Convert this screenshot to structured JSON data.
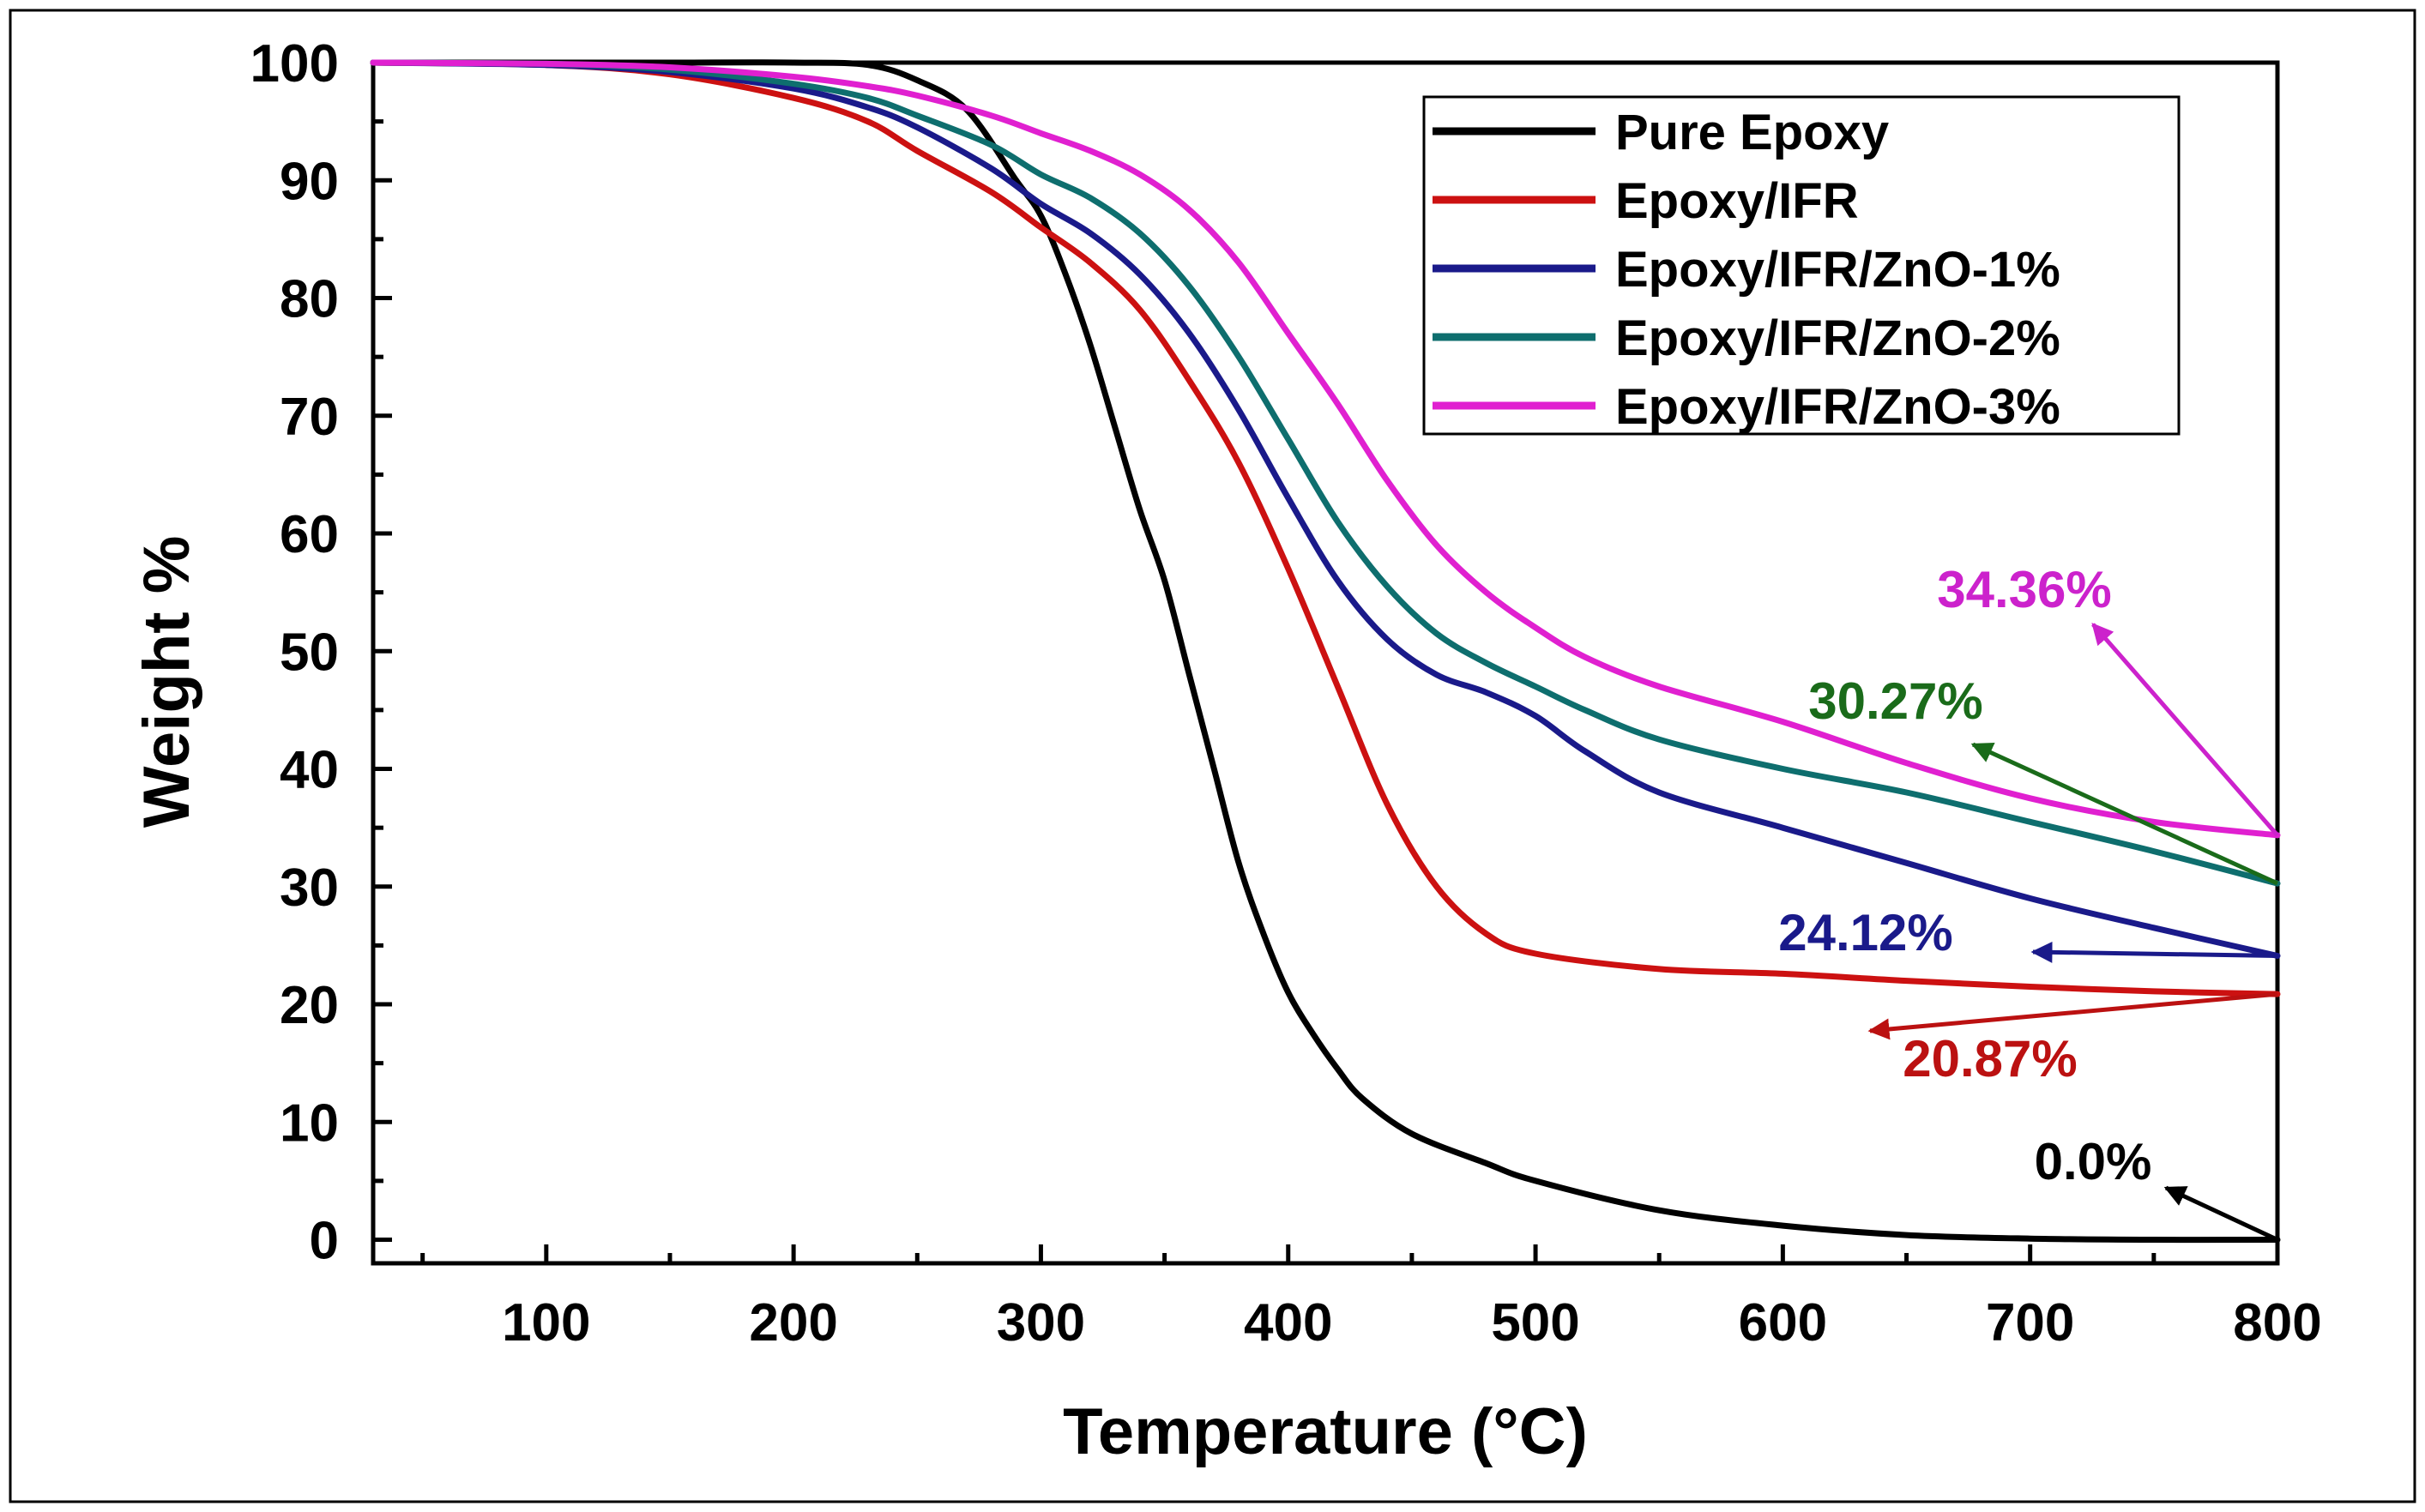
{
  "chart_data": {
    "type": "line",
    "xlabel": "Temperature (°C)",
    "ylabel": "Weight %",
    "xlim": [
      30,
      800
    ],
    "ylim": [
      -2,
      100
    ],
    "x_ticks": [
      100,
      200,
      300,
      400,
      500,
      600,
      700,
      800
    ],
    "y_ticks": [
      0,
      10,
      20,
      30,
      40,
      50,
      60,
      70,
      80,
      90,
      100
    ],
    "x_tick_labels": [
      "100",
      "200",
      "300",
      "400",
      "500",
      "600",
      "700",
      "800"
    ],
    "y_tick_labels": [
      "0",
      "10",
      "20",
      "30",
      "40",
      "50",
      "60",
      "70",
      "80",
      "90",
      "100"
    ],
    "grid": false,
    "legend_position": "top-right",
    "series": [
      {
        "name": "Pure Epoxy",
        "color": "#000000",
        "points": [
          [
            30,
            100
          ],
          [
            100,
            100
          ],
          [
            150,
            100
          ],
          [
            200,
            100
          ],
          [
            230,
            99.8
          ],
          [
            250,
            98.5
          ],
          [
            270,
            96
          ],
          [
            290,
            90
          ],
          [
            300,
            87
          ],
          [
            310,
            82
          ],
          [
            320,
            76
          ],
          [
            330,
            69
          ],
          [
            340,
            62
          ],
          [
            350,
            56
          ],
          [
            360,
            48
          ],
          [
            370,
            40
          ],
          [
            380,
            32
          ],
          [
            390,
            26
          ],
          [
            400,
            21
          ],
          [
            410,
            17.5
          ],
          [
            420,
            14.5
          ],
          [
            430,
            12
          ],
          [
            450,
            9
          ],
          [
            480,
            6.5
          ],
          [
            500,
            5
          ],
          [
            550,
            2.5
          ],
          [
            600,
            1.2
          ],
          [
            650,
            0.4
          ],
          [
            700,
            0.1
          ],
          [
            750,
            0
          ],
          [
            800,
            0
          ]
        ]
      },
      {
        "name": "Epoxy/IFR",
        "color": "#cc1111",
        "points": [
          [
            30,
            100
          ],
          [
            100,
            99.8
          ],
          [
            150,
            99
          ],
          [
            200,
            97
          ],
          [
            230,
            95
          ],
          [
            250,
            92.5
          ],
          [
            280,
            89
          ],
          [
            300,
            86
          ],
          [
            320,
            83
          ],
          [
            340,
            79
          ],
          [
            360,
            73
          ],
          [
            380,
            66
          ],
          [
            400,
            57
          ],
          [
            420,
            47
          ],
          [
            440,
            37
          ],
          [
            460,
            30
          ],
          [
            480,
            26
          ],
          [
            500,
            24.3
          ],
          [
            550,
            23
          ],
          [
            600,
            22.6
          ],
          [
            650,
            22
          ],
          [
            700,
            21.5
          ],
          [
            750,
            21.1
          ],
          [
            800,
            20.87
          ]
        ]
      },
      {
        "name": "Epoxy/IFR/ZnO-1%",
        "color": "#1a1a8a",
        "points": [
          [
            30,
            100
          ],
          [
            100,
            99.8
          ],
          [
            150,
            99.2
          ],
          [
            200,
            97.8
          ],
          [
            230,
            96.2
          ],
          [
            250,
            94.5
          ],
          [
            280,
            91
          ],
          [
            300,
            88
          ],
          [
            320,
            85.5
          ],
          [
            340,
            82
          ],
          [
            360,
            77
          ],
          [
            380,
            70.5
          ],
          [
            400,
            63
          ],
          [
            420,
            56
          ],
          [
            440,
            51
          ],
          [
            460,
            48
          ],
          [
            480,
            46.5
          ],
          [
            500,
            44.5
          ],
          [
            520,
            41.5
          ],
          [
            550,
            38
          ],
          [
            600,
            35
          ],
          [
            650,
            32
          ],
          [
            700,
            29
          ],
          [
            750,
            26.5
          ],
          [
            800,
            24.12
          ]
        ]
      },
      {
        "name": "Epoxy/IFR/ZnO-2%",
        "color": "#0e6e6e",
        "points": [
          [
            30,
            100
          ],
          [
            100,
            99.9
          ],
          [
            150,
            99.4
          ],
          [
            200,
            98.2
          ],
          [
            230,
            97
          ],
          [
            250,
            95.5
          ],
          [
            280,
            93
          ],
          [
            300,
            90.5
          ],
          [
            320,
            88.5
          ],
          [
            340,
            85.5
          ],
          [
            360,
            81
          ],
          [
            380,
            75
          ],
          [
            400,
            68
          ],
          [
            420,
            61
          ],
          [
            440,
            55.5
          ],
          [
            460,
            51.5
          ],
          [
            480,
            49
          ],
          [
            500,
            47
          ],
          [
            520,
            45
          ],
          [
            550,
            42.5
          ],
          [
            600,
            40
          ],
          [
            650,
            38
          ],
          [
            700,
            35.5
          ],
          [
            750,
            33
          ],
          [
            800,
            30.27
          ]
        ]
      },
      {
        "name": "Epoxy/IFR/ZnO-3%",
        "color": "#e020d0",
        "points": [
          [
            30,
            100
          ],
          [
            100,
            99.9
          ],
          [
            150,
            99.6
          ],
          [
            200,
            98.8
          ],
          [
            230,
            98
          ],
          [
            250,
            97.2
          ],
          [
            280,
            95.5
          ],
          [
            300,
            94
          ],
          [
            320,
            92.5
          ],
          [
            340,
            90.5
          ],
          [
            360,
            87.5
          ],
          [
            380,
            83
          ],
          [
            400,
            77
          ],
          [
            420,
            71
          ],
          [
            440,
            64.5
          ],
          [
            460,
            59
          ],
          [
            480,
            55
          ],
          [
            500,
            52
          ],
          [
            520,
            49.5
          ],
          [
            550,
            47
          ],
          [
            600,
            44
          ],
          [
            650,
            40.5
          ],
          [
            700,
            37.5
          ],
          [
            750,
            35.5
          ],
          [
            800,
            34.36
          ]
        ]
      }
    ],
    "annotations": [
      {
        "text": "34.36%",
        "color": "#cc22cc",
        "value": 34.36,
        "series": "Epoxy/IFR/ZnO-3%"
      },
      {
        "text": "30.27%",
        "color": "#1a6b1a",
        "value": 30.27,
        "series": "Epoxy/IFR/ZnO-2%"
      },
      {
        "text": "24.12%",
        "color": "#1a1a8a",
        "value": 24.12,
        "series": "Epoxy/IFR/ZnO-1%"
      },
      {
        "text": "20.87%",
        "color": "#bb1111",
        "value": 20.87,
        "series": "Epoxy/IFR"
      },
      {
        "text": "0.0%",
        "color": "#000000",
        "value": 0.0,
        "series": "Pure Epoxy"
      }
    ]
  }
}
